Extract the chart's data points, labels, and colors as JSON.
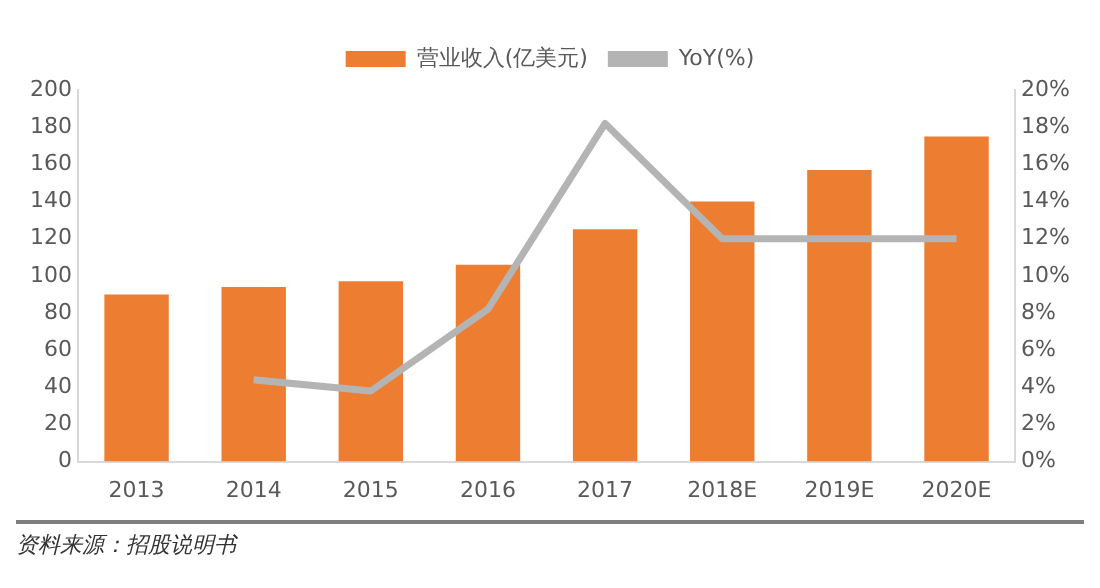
{
  "chart_data": {
    "type": "bar",
    "categories": [
      "2013",
      "2014",
      "2015",
      "2016",
      "2017",
      "2018E",
      "2019E",
      "2020E"
    ],
    "series": [
      {
        "name": "营业收入(亿美元)",
        "color": "#ed7d31",
        "values": [
          90,
          94,
          97,
          106,
          125,
          140,
          157,
          175
        ]
      },
      {
        "name": "YoY(%)",
        "type": "line",
        "axis": "y2",
        "color": "#b4b4b4",
        "values": [
          null,
          4.4,
          3.8,
          8.2,
          18.2,
          12,
          12,
          12
        ]
      }
    ],
    "ylim": [
      0,
      200
    ],
    "yticks": [
      0,
      20,
      40,
      60,
      80,
      100,
      120,
      140,
      160,
      180,
      200
    ],
    "y2lim": [
      0,
      20
    ],
    "y2ticks": [
      {
        "value": 0,
        "label": "0%"
      },
      {
        "value": 2,
        "label": "2%"
      },
      {
        "value": 4,
        "label": "4%"
      },
      {
        "value": 6,
        "label": "6%"
      },
      {
        "value": 8,
        "label": "8%"
      },
      {
        "value": 10,
        "label": "10%"
      },
      {
        "value": 12,
        "label": "12%"
      },
      {
        "value": 14,
        "label": "14%"
      },
      {
        "value": 16,
        "label": "16%"
      },
      {
        "value": 18,
        "label": "18%"
      },
      {
        "value": 20,
        "label": "20%"
      }
    ],
    "grid": false,
    "legend": "top",
    "marker": "none",
    "line_style": "solid",
    "annotations": [
      "资料来源：招股说明书"
    ]
  }
}
